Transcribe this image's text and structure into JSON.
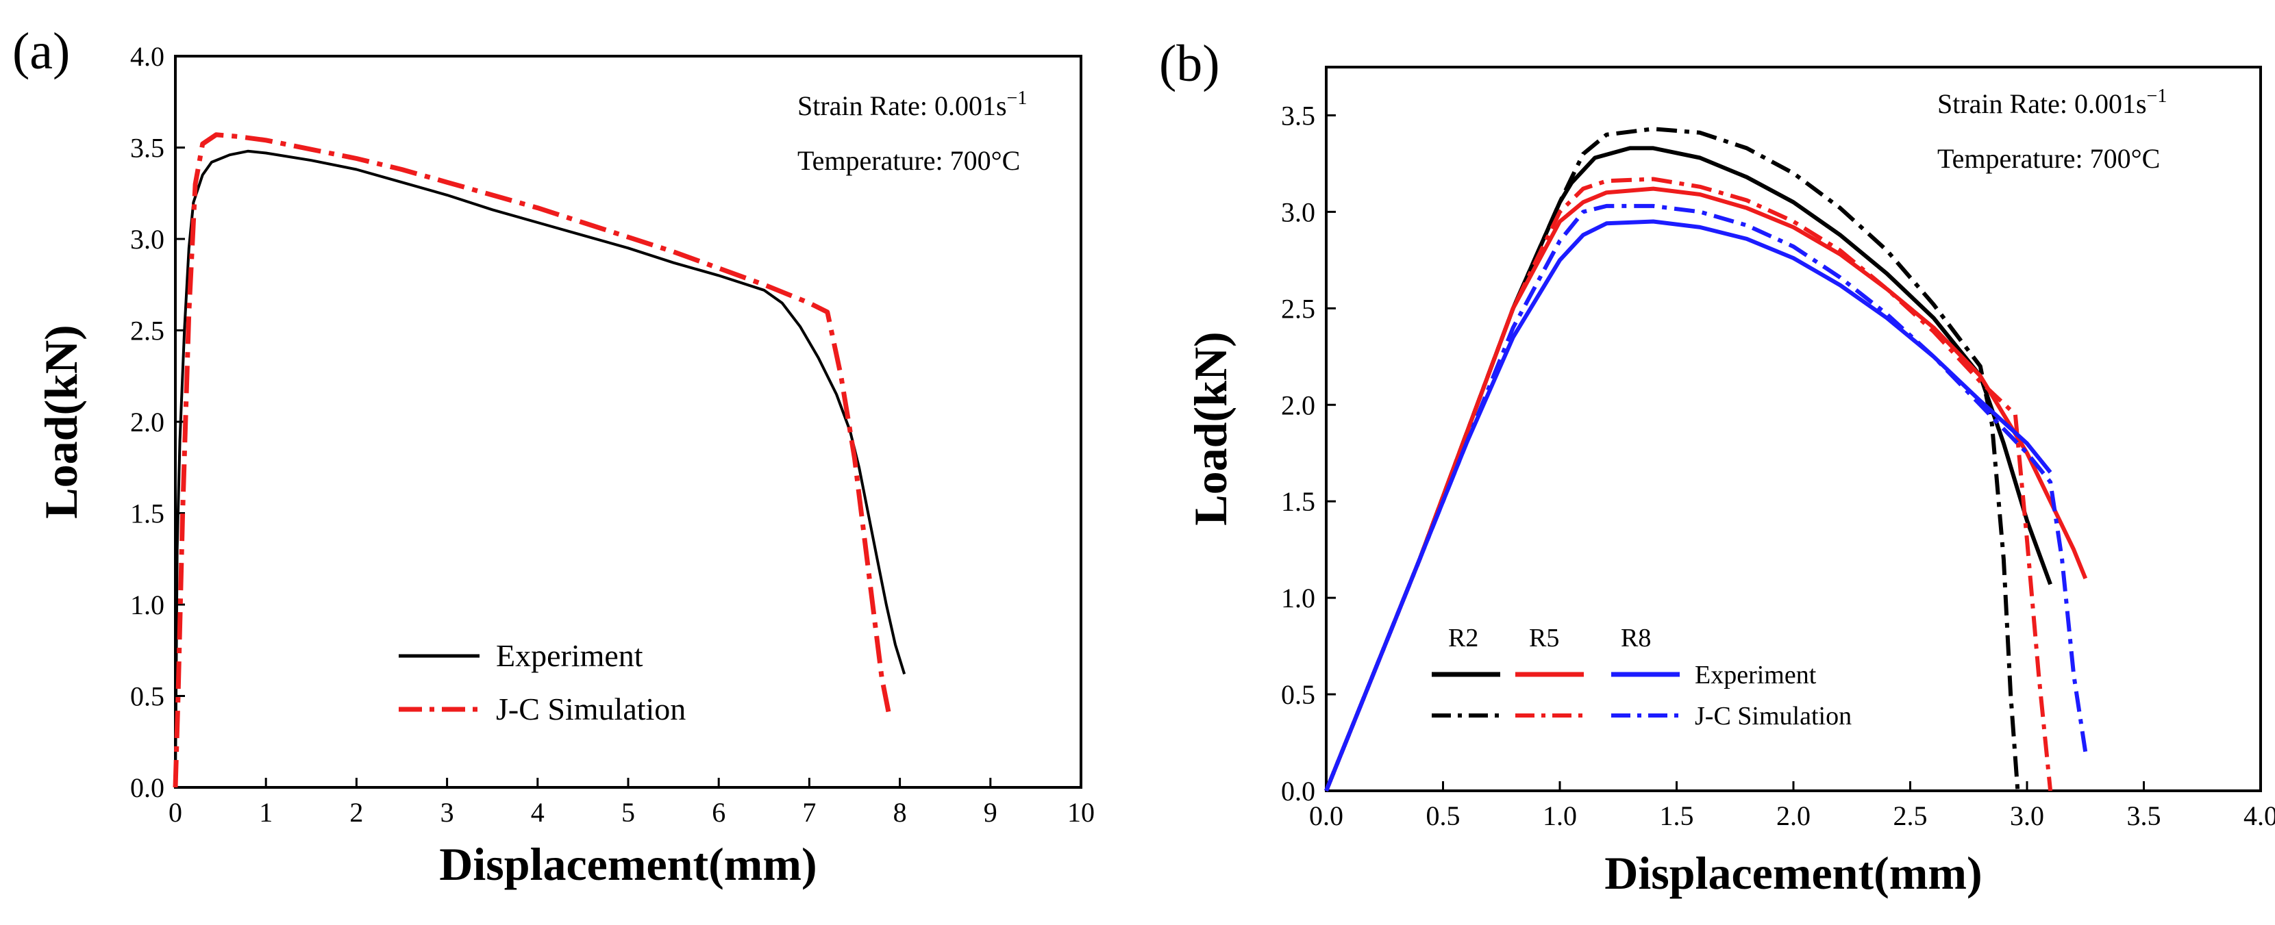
{
  "charts": [
    {
      "panel_label": "(a)",
      "annotations": {
        "strain_rate_label": "Strain Rate: 0.001s",
        "strain_rate_exp": "−1",
        "temperature": "Temperature:  700°C"
      },
      "legend": {
        "experiment": "Experiment",
        "simulation": "J-C Simulation"
      }
    },
    {
      "panel_label": "(b)",
      "annotations": {
        "strain_rate_label": "Strain Rate: 0.001s",
        "strain_rate_exp": "−1",
        "temperature": "Temperature:  700°C"
      },
      "legend": {
        "group_r2": "R2",
        "group_r5": "R5",
        "group_r8": "R8",
        "experiment": "Experiment",
        "simulation": "J-C Simulation"
      }
    }
  ],
  "colors": {
    "black": "#000000",
    "red": "#ee1c1c",
    "blue": "#1c1cff"
  },
  "chart_data": [
    {
      "type": "line",
      "title": "",
      "xlabel": "Displacement(mm)",
      "ylabel": "Load(kN)",
      "xlim": [
        0,
        10
      ],
      "ylim": [
        0,
        4.0
      ],
      "xticks": [
        0,
        1,
        2,
        3,
        4,
        5,
        6,
        7,
        8,
        9,
        10
      ],
      "xtick_labels": [
        "0",
        "1",
        "2",
        "3",
        "4",
        "5",
        "6",
        "7",
        "8",
        "9",
        "10"
      ],
      "yticks": [
        0,
        0.5,
        1.0,
        1.5,
        2.0,
        2.5,
        3.0,
        3.5,
        4.0
      ],
      "ytick_labels": [
        "0.0",
        "0.5",
        "1.0",
        "1.5",
        "2.0",
        "2.5",
        "3.0",
        "3.5",
        "4.0"
      ],
      "legend_position": "bottom-center",
      "series": [
        {
          "name": "Experiment",
          "color": "#000000",
          "style": "solid",
          "x": [
            0.0,
            0.02,
            0.05,
            0.1,
            0.15,
            0.2,
            0.3,
            0.4,
            0.6,
            0.8,
            1.0,
            1.5,
            2.0,
            2.5,
            3.0,
            3.5,
            4.0,
            4.5,
            5.0,
            5.5,
            6.0,
            6.5,
            6.7,
            6.9,
            7.1,
            7.3,
            7.45,
            7.55,
            7.65,
            7.75,
            7.85,
            7.95,
            8.05
          ],
          "y": [
            0.0,
            1.3,
            1.9,
            2.5,
            2.95,
            3.2,
            3.35,
            3.42,
            3.46,
            3.48,
            3.47,
            3.43,
            3.38,
            3.31,
            3.24,
            3.16,
            3.09,
            3.02,
            2.95,
            2.87,
            2.8,
            2.72,
            2.65,
            2.52,
            2.35,
            2.15,
            1.95,
            1.75,
            1.5,
            1.25,
            1.0,
            0.78,
            0.62
          ]
        },
        {
          "name": "J-C Simulation",
          "color": "#ee1c1c",
          "style": "dashdot",
          "x": [
            0.0,
            0.03,
            0.08,
            0.15,
            0.22,
            0.3,
            0.45,
            0.7,
            1.0,
            1.5,
            2.0,
            2.5,
            3.0,
            3.5,
            4.0,
            4.5,
            5.0,
            5.5,
            6.0,
            6.5,
            7.0,
            7.2,
            7.35,
            7.5,
            7.6,
            7.7,
            7.8,
            7.88
          ],
          "y": [
            0.0,
            0.5,
            1.5,
            2.6,
            3.3,
            3.52,
            3.57,
            3.56,
            3.54,
            3.49,
            3.44,
            3.38,
            3.31,
            3.24,
            3.17,
            3.09,
            3.01,
            2.93,
            2.84,
            2.75,
            2.65,
            2.6,
            2.25,
            1.8,
            1.4,
            1.0,
            0.6,
            0.4
          ]
        }
      ]
    },
    {
      "type": "line",
      "title": "",
      "xlabel": "Displacement(mm)",
      "ylabel": "Load(kN)",
      "xlim": [
        0,
        4.0
      ],
      "ylim": [
        0,
        3.75
      ],
      "xticks": [
        0,
        0.5,
        1.0,
        1.5,
        2.0,
        2.5,
        3.0,
        3.5,
        4.0
      ],
      "xtick_labels": [
        "0.0",
        "0.5",
        "1.0",
        "1.5",
        "2.0",
        "2.5",
        "3.0",
        "3.5",
        "4.0"
      ],
      "yticks": [
        0,
        0.5,
        1.0,
        1.5,
        2.0,
        2.5,
        3.0,
        3.5
      ],
      "ytick_labels": [
        "0.0",
        "0.5",
        "1.0",
        "1.5",
        "2.0",
        "2.5",
        "3.0",
        "3.5"
      ],
      "legend_position": "bottom-left",
      "series": [
        {
          "name": "R2 Experiment",
          "color": "#000000",
          "style": "solid",
          "x": [
            0.0,
            0.2,
            0.4,
            0.6,
            0.8,
            1.0,
            1.05,
            1.15,
            1.3,
            1.4,
            1.6,
            1.8,
            2.0,
            2.2,
            2.4,
            2.6,
            2.8,
            2.9,
            3.0,
            3.1
          ],
          "y": [
            0.0,
            0.6,
            1.2,
            1.85,
            2.5,
            3.05,
            3.15,
            3.28,
            3.33,
            3.33,
            3.28,
            3.18,
            3.05,
            2.88,
            2.68,
            2.45,
            2.15,
            1.8,
            1.4,
            1.07
          ]
        },
        {
          "name": "R2 J-C Simulation",
          "color": "#000000",
          "style": "dashdot",
          "x": [
            0.0,
            0.2,
            0.4,
            0.6,
            0.8,
            1.0,
            1.1,
            1.2,
            1.4,
            1.6,
            1.8,
            2.0,
            2.2,
            2.4,
            2.6,
            2.8,
            2.85,
            2.9,
            2.93,
            2.96
          ],
          "y": [
            0.0,
            0.6,
            1.2,
            1.85,
            2.5,
            3.05,
            3.3,
            3.4,
            3.43,
            3.41,
            3.33,
            3.2,
            3.02,
            2.8,
            2.52,
            2.2,
            1.9,
            1.2,
            0.5,
            0.0
          ]
        },
        {
          "name": "R5 Experiment",
          "color": "#ee1c1c",
          "style": "solid",
          "x": [
            0.0,
            0.2,
            0.4,
            0.6,
            0.8,
            1.0,
            1.1,
            1.2,
            1.4,
            1.6,
            1.8,
            2.0,
            2.2,
            2.4,
            2.6,
            2.8,
            2.9,
            3.0,
            3.1,
            3.2,
            3.25
          ],
          "y": [
            0.0,
            0.6,
            1.2,
            1.85,
            2.5,
            2.95,
            3.05,
            3.1,
            3.12,
            3.09,
            3.02,
            2.92,
            2.78,
            2.6,
            2.4,
            2.15,
            1.95,
            1.75,
            1.5,
            1.25,
            1.1
          ]
        },
        {
          "name": "R5 J-C Simulation",
          "color": "#ee1c1c",
          "style": "dashdot",
          "x": [
            0.0,
            0.2,
            0.4,
            0.6,
            0.8,
            1.0,
            1.1,
            1.2,
            1.4,
            1.6,
            1.8,
            2.0,
            2.2,
            2.4,
            2.6,
            2.8,
            2.95,
            3.0,
            3.05,
            3.1
          ],
          "y": [
            0.0,
            0.6,
            1.2,
            1.85,
            2.5,
            3.0,
            3.12,
            3.16,
            3.17,
            3.13,
            3.06,
            2.95,
            2.8,
            2.6,
            2.38,
            2.12,
            1.95,
            1.3,
            0.6,
            0.0
          ]
        },
        {
          "name": "R8 Experiment",
          "color": "#1c1cff",
          "style": "solid",
          "x": [
            0.0,
            0.2,
            0.4,
            0.6,
            0.8,
            1.0,
            1.1,
            1.2,
            1.4,
            1.6,
            1.8,
            2.0,
            2.2,
            2.4,
            2.6,
            2.8,
            3.0,
            3.1
          ],
          "y": [
            0.0,
            0.6,
            1.2,
            1.8,
            2.35,
            2.75,
            2.88,
            2.94,
            2.95,
            2.92,
            2.86,
            2.76,
            2.62,
            2.45,
            2.25,
            2.02,
            1.8,
            1.65
          ]
        },
        {
          "name": "R8 J-C Simulation",
          "color": "#1c1cff",
          "style": "dashdot",
          "x": [
            0.0,
            0.2,
            0.4,
            0.6,
            0.8,
            1.0,
            1.1,
            1.2,
            1.4,
            1.6,
            1.8,
            2.0,
            2.2,
            2.4,
            2.6,
            2.8,
            3.0,
            3.1,
            3.15,
            3.2,
            3.25
          ],
          "y": [
            0.0,
            0.6,
            1.2,
            1.8,
            2.4,
            2.85,
            3.0,
            3.03,
            3.03,
            3.0,
            2.93,
            2.82,
            2.66,
            2.47,
            2.25,
            2.0,
            1.75,
            1.6,
            1.2,
            0.6,
            0.2
          ]
        }
      ],
      "legend": {
        "columns": [
          "R2",
          "R5",
          "R8"
        ],
        "rows": [
          {
            "label": "Experiment",
            "style": "solid",
            "colors": [
              "#000000",
              "#ee1c1c",
              "#1c1cff"
            ]
          },
          {
            "label": "J-C Simulation",
            "style": "dashdot",
            "colors": [
              "#000000",
              "#ee1c1c",
              "#1c1cff"
            ]
          }
        ]
      }
    }
  ]
}
